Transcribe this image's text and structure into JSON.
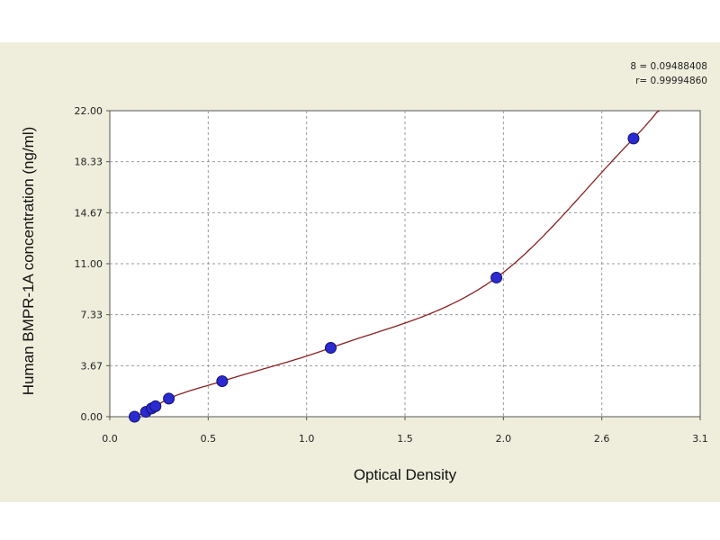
{
  "stats": {
    "line1": "8 = 0.09488408",
    "line2": "r= 0.99994860"
  },
  "chart_data": {
    "type": "scatter",
    "xlabel": "Optical Density",
    "ylabel": "Human BMPR-1A concentration (ng/ml)",
    "xlim": [
      0,
      3.1
    ],
    "ylim": [
      0,
      22
    ],
    "x_ticks": [
      "0.0",
      "0.5",
      "1.0",
      "1.5",
      "2.0",
      "2.6",
      "3.1"
    ],
    "y_ticks": [
      "0.00",
      "3.67",
      "7.33",
      "11.00",
      "14.67",
      "18.33",
      "22.00"
    ],
    "grid": true,
    "series": [
      {
        "points": [
          {
            "x": 0.13,
            "y": 0.0
          },
          {
            "x": 0.19,
            "y": 0.35
          },
          {
            "x": 0.22,
            "y": 0.6
          },
          {
            "x": 0.24,
            "y": 0.75
          },
          {
            "x": 0.31,
            "y": 1.3
          },
          {
            "x": 0.59,
            "y": 2.55
          },
          {
            "x": 1.16,
            "y": 4.95
          },
          {
            "x": 2.03,
            "y": 10.0
          },
          {
            "x": 2.75,
            "y": 20.0
          }
        ],
        "marker_color": "#2a2ad0",
        "fit_line_color": "#8a2020"
      }
    ]
  }
}
